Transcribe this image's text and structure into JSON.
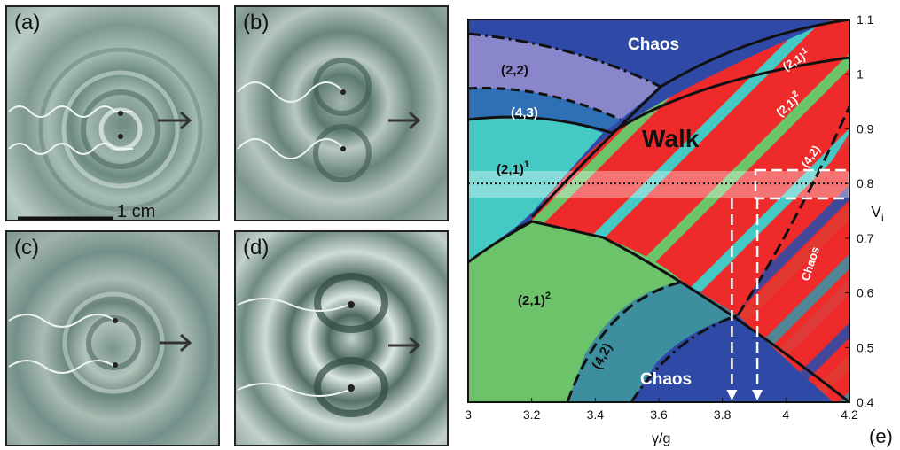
{
  "panels": [
    {
      "label": "(a)"
    },
    {
      "label": "(b)"
    },
    {
      "label": "(c)"
    },
    {
      "label": "(d)"
    }
  ],
  "scale_bar_label": "1 cm",
  "colors": {
    "chaos": "#2f4aa6",
    "walk": "#ee2a2a",
    "mode21_1": "#45c9c4",
    "mode21_2": "#6cc36a",
    "mode22": "#8a86cc",
    "mode43": "#2f6fb6",
    "mode42": "#3d8fa0"
  },
  "diagram": {
    "panel_label": "(e)",
    "xlabel": "γ/g",
    "ylabel": "V",
    "ylabel_sub": "i",
    "xticks": [
      "3",
      "3.2",
      "3.4",
      "3.6",
      "3.8",
      "4",
      "4.2"
    ],
    "yticks": [
      "0.4",
      "0.5",
      "0.6",
      "0.7",
      "0.8",
      "0.9",
      "1",
      "1.1"
    ],
    "xlim": [
      3.0,
      4.2
    ],
    "ylim": [
      0.4,
      1.1
    ],
    "regions": {
      "chaos_top": "Chaos",
      "chaos_bottom": "Chaos",
      "chaos_right": "Chaos",
      "walk": "Walk",
      "m22": "(2,2)",
      "m43": "(4,3)",
      "m21_1": "(2,1)",
      "m21_1_sup": "1",
      "m21_2": "(2,1)",
      "m21_2_sup": "2",
      "m42": "(4,2)",
      "stripe_21_1": "(2,1)",
      "stripe_21_1_sup": "1",
      "stripe_21_2": "(2,1)",
      "stripe_21_2_sup": "2",
      "stripe_42": "(4,2)"
    },
    "dotted_line_V": 0.8,
    "dashed_arrow_gamma": [
      3.83,
      3.91
    ]
  }
}
